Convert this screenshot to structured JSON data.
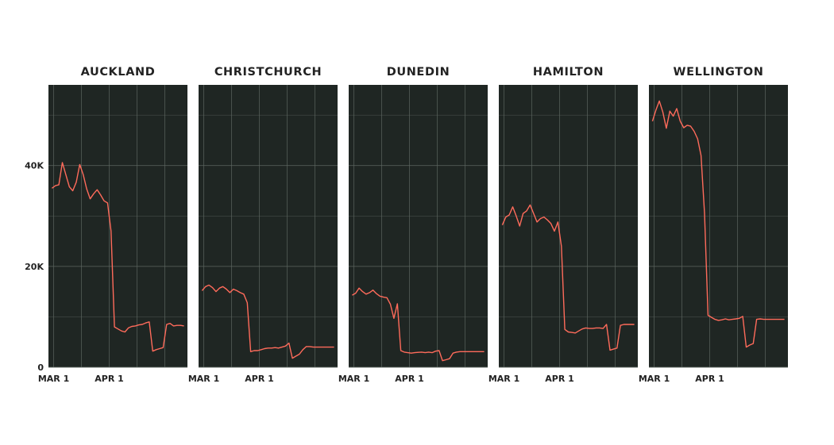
{
  "colors": {
    "panel_bg": "#1f2623",
    "grid": "#5d6660",
    "line": "#ff6b5b",
    "text": "#222222"
  },
  "chart_data": [
    {
      "type": "line",
      "title": "AUCKLAND",
      "x_ticks": [
        "MAR 1",
        "APR 1"
      ],
      "y_ticks": [
        "0",
        "20K",
        "40K"
      ],
      "ylim": [
        0,
        56000
      ],
      "xlim": [
        -1,
        39
      ],
      "grid": true,
      "series": [
        {
          "x": [
            0,
            1,
            2,
            3,
            4,
            5,
            6,
            7,
            8,
            9,
            10,
            11,
            12,
            13,
            14,
            15,
            16,
            17,
            18,
            19,
            20,
            21,
            22,
            23,
            24,
            25,
            26,
            27,
            28,
            29,
            30,
            31,
            32,
            33,
            34,
            35,
            36,
            37,
            38
          ],
          "values": [
            35500,
            36000,
            36200,
            40600,
            38200,
            35800,
            35000,
            36700,
            40200,
            38200,
            35400,
            33400,
            34400,
            35200,
            34200,
            33000,
            32600,
            27000,
            8000,
            7600,
            7200,
            7000,
            7800,
            8100,
            8200,
            8400,
            8500,
            8800,
            9000,
            3200,
            3500,
            3700,
            3900,
            8500,
            8700,
            8200,
            8300,
            8300,
            8200
          ]
        }
      ]
    },
    {
      "type": "line",
      "title": "CHRISTCHURCH",
      "x_ticks": [
        "MAR 1",
        "APR 1"
      ],
      "y_ticks": [],
      "ylim": [
        0,
        56000
      ],
      "xlim": [
        -1,
        39
      ],
      "grid": true,
      "series": [
        {
          "x": [
            0,
            1,
            2,
            3,
            4,
            5,
            6,
            7,
            8,
            9,
            10,
            11,
            12,
            13,
            14,
            15,
            16,
            17,
            18,
            19,
            20,
            21,
            22,
            23,
            24,
            25,
            26,
            27,
            28,
            29,
            30,
            31,
            32,
            33,
            34,
            35,
            36,
            37,
            38
          ],
          "values": [
            15200,
            16000,
            16300,
            15800,
            15000,
            15700,
            16000,
            15500,
            14800,
            15500,
            15200,
            14800,
            14500,
            12800,
            3100,
            3300,
            3300,
            3500,
            3700,
            3800,
            3800,
            3900,
            3800,
            4000,
            4200,
            4800,
            1800,
            2200,
            2600,
            3500,
            4100,
            4100,
            4000,
            4000,
            4000,
            4000,
            4000,
            4000,
            4000
          ]
        }
      ]
    },
    {
      "type": "line",
      "title": "DUNEDIN",
      "x_ticks": [
        "MAR 1",
        "APR 1"
      ],
      "y_ticks": [],
      "ylim": [
        0,
        56000
      ],
      "xlim": [
        -1,
        39
      ],
      "grid": true,
      "series": [
        {
          "x": [
            0,
            1,
            2,
            3,
            4,
            5,
            6,
            7,
            8,
            9,
            10,
            11,
            12,
            13,
            14,
            15,
            16,
            17,
            18,
            19,
            20,
            21,
            22,
            23,
            24,
            25,
            26,
            27,
            28,
            29,
            30,
            31,
            32,
            33,
            34,
            35,
            36,
            37,
            38
          ],
          "values": [
            14300,
            14700,
            15700,
            15000,
            14500,
            14800,
            15300,
            14600,
            14100,
            13900,
            13800,
            12500,
            9700,
            12600,
            3300,
            3000,
            2900,
            2800,
            2900,
            2950,
            3000,
            2900,
            3000,
            2900,
            3200,
            3300,
            1300,
            1500,
            1700,
            2800,
            3000,
            3100,
            3100,
            3100,
            3100,
            3100,
            3100,
            3100,
            3100
          ]
        }
      ]
    },
    {
      "type": "line",
      "title": "HAMILTON",
      "x_ticks": [
        "MAR 1",
        "APR 1"
      ],
      "y_ticks": [],
      "ylim": [
        0,
        56000
      ],
      "xlim": [
        -1,
        39
      ],
      "grid": true,
      "series": [
        {
          "x": [
            0,
            1,
            2,
            3,
            4,
            5,
            6,
            7,
            8,
            9,
            10,
            11,
            12,
            13,
            14,
            15,
            16,
            17,
            18,
            19,
            20,
            21,
            22,
            23,
            24,
            25,
            26,
            27,
            28,
            29,
            30,
            31,
            32,
            33,
            34,
            35,
            36,
            37,
            38
          ],
          "values": [
            28200,
            29800,
            30200,
            31800,
            30000,
            28000,
            30500,
            31000,
            32200,
            30500,
            28800,
            29500,
            29800,
            29200,
            28500,
            27000,
            28800,
            24000,
            7500,
            7000,
            6900,
            6800,
            7200,
            7600,
            7800,
            7700,
            7700,
            7800,
            7800,
            7700,
            8500,
            3400,
            3600,
            3800,
            8300,
            8500,
            8500,
            8500,
            8500
          ]
        }
      ]
    },
    {
      "type": "line",
      "title": "WELLINGTON",
      "x_ticks": [
        "MAR 1",
        "APR 1"
      ],
      "y_ticks": [],
      "ylim": [
        0,
        56000
      ],
      "xlim": [
        -1,
        39
      ],
      "grid": true,
      "series": [
        {
          "x": [
            0,
            1,
            2,
            3,
            4,
            5,
            6,
            7,
            8,
            9,
            10,
            11,
            12,
            13,
            14,
            15,
            16,
            17,
            18,
            19,
            20,
            21,
            22,
            23,
            24,
            25,
            26,
            27,
            28,
            29,
            30,
            31,
            32,
            33,
            34,
            35,
            36,
            37,
            38
          ],
          "values": [
            48800,
            51000,
            52800,
            50600,
            47400,
            50800,
            49800,
            51300,
            48800,
            47500,
            48000,
            47800,
            46800,
            45300,
            42000,
            30500,
            10300,
            9900,
            9500,
            9300,
            9400,
            9600,
            9400,
            9500,
            9600,
            9700,
            10100,
            4000,
            4400,
            4700,
            9500,
            9600,
            9500,
            9500,
            9500,
            9500,
            9500,
            9500,
            9500
          ]
        }
      ]
    }
  ]
}
